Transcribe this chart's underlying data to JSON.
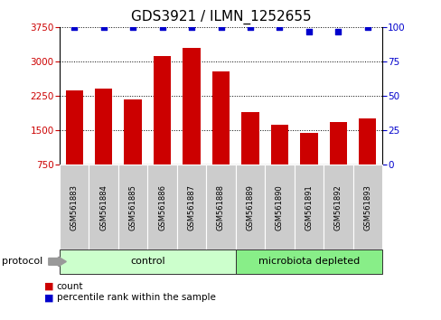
{
  "title": "GDS3921 / ILMN_1252655",
  "samples": [
    "GSM561883",
    "GSM561884",
    "GSM561885",
    "GSM561886",
    "GSM561887",
    "GSM561888",
    "GSM561889",
    "GSM561890",
    "GSM561891",
    "GSM561892",
    "GSM561893"
  ],
  "counts": [
    2380,
    2420,
    2170,
    3120,
    3300,
    2780,
    1900,
    1620,
    1440,
    1690,
    1760
  ],
  "percentile_ranks": [
    100,
    100,
    100,
    100,
    100,
    100,
    100,
    100,
    97,
    97,
    100
  ],
  "bar_color": "#cc0000",
  "dot_color": "#0000cc",
  "ylim_left": [
    750,
    3750
  ],
  "ylim_right": [
    0,
    100
  ],
  "yticks_left": [
    750,
    1500,
    2250,
    3000,
    3750
  ],
  "yticks_right": [
    0,
    25,
    50,
    75,
    100
  ],
  "grid_values": [
    1500,
    2250,
    3000
  ],
  "groups": [
    {
      "label": "control",
      "start": 0,
      "end": 5,
      "color": "#ccffcc"
    },
    {
      "label": "microbiota depleted",
      "start": 6,
      "end": 10,
      "color": "#88ee88"
    }
  ],
  "protocol_label": "protocol",
  "legend_count_label": "count",
  "legend_percentile_label": "percentile rank within the sample",
  "title_fontsize": 11,
  "bar_width": 0.6
}
